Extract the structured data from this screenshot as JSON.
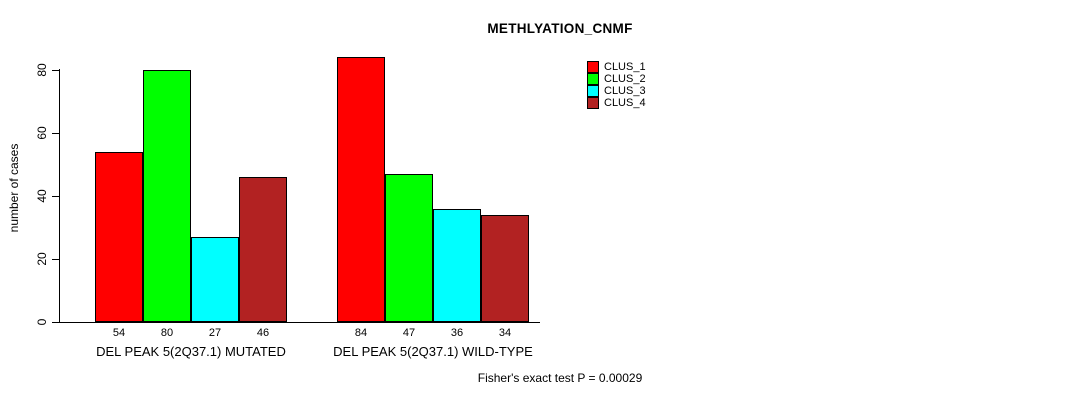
{
  "title": "METHLYATION_CNMF",
  "ylabel": "number of cases",
  "footer": "Fisher's exact test P = 0.00029",
  "legend": [
    {
      "label": "CLUS_1",
      "color": "#ff0000"
    },
    {
      "label": "CLUS_2",
      "color": "#00ff00"
    },
    {
      "label": "CLUS_3",
      "color": "#00ffff"
    },
    {
      "label": "CLUS_4",
      "color": "#b22222"
    }
  ],
  "chart_data": {
    "type": "bar",
    "title": "METHLYATION_CNMF",
    "ylabel": "number of cases",
    "xlabel": "",
    "ylim": [
      0,
      84
    ],
    "yticks": [
      0,
      20,
      40,
      60,
      80
    ],
    "grid": false,
    "legend_position": "top-right",
    "series_names": [
      "CLUS_1",
      "CLUS_2",
      "CLUS_3",
      "CLUS_4"
    ],
    "series_colors": [
      "#ff0000",
      "#00ff00",
      "#00ffff",
      "#b22222"
    ],
    "groups": [
      {
        "label": "DEL PEAK 5(2Q37.1) MUTATED",
        "values": [
          54,
          80,
          27,
          46
        ]
      },
      {
        "label": "DEL PEAK 5(2Q37.1) WILD-TYPE",
        "values": [
          84,
          47,
          36,
          34
        ]
      }
    ],
    "annotation": "Fisher's exact test P = 0.00029"
  }
}
